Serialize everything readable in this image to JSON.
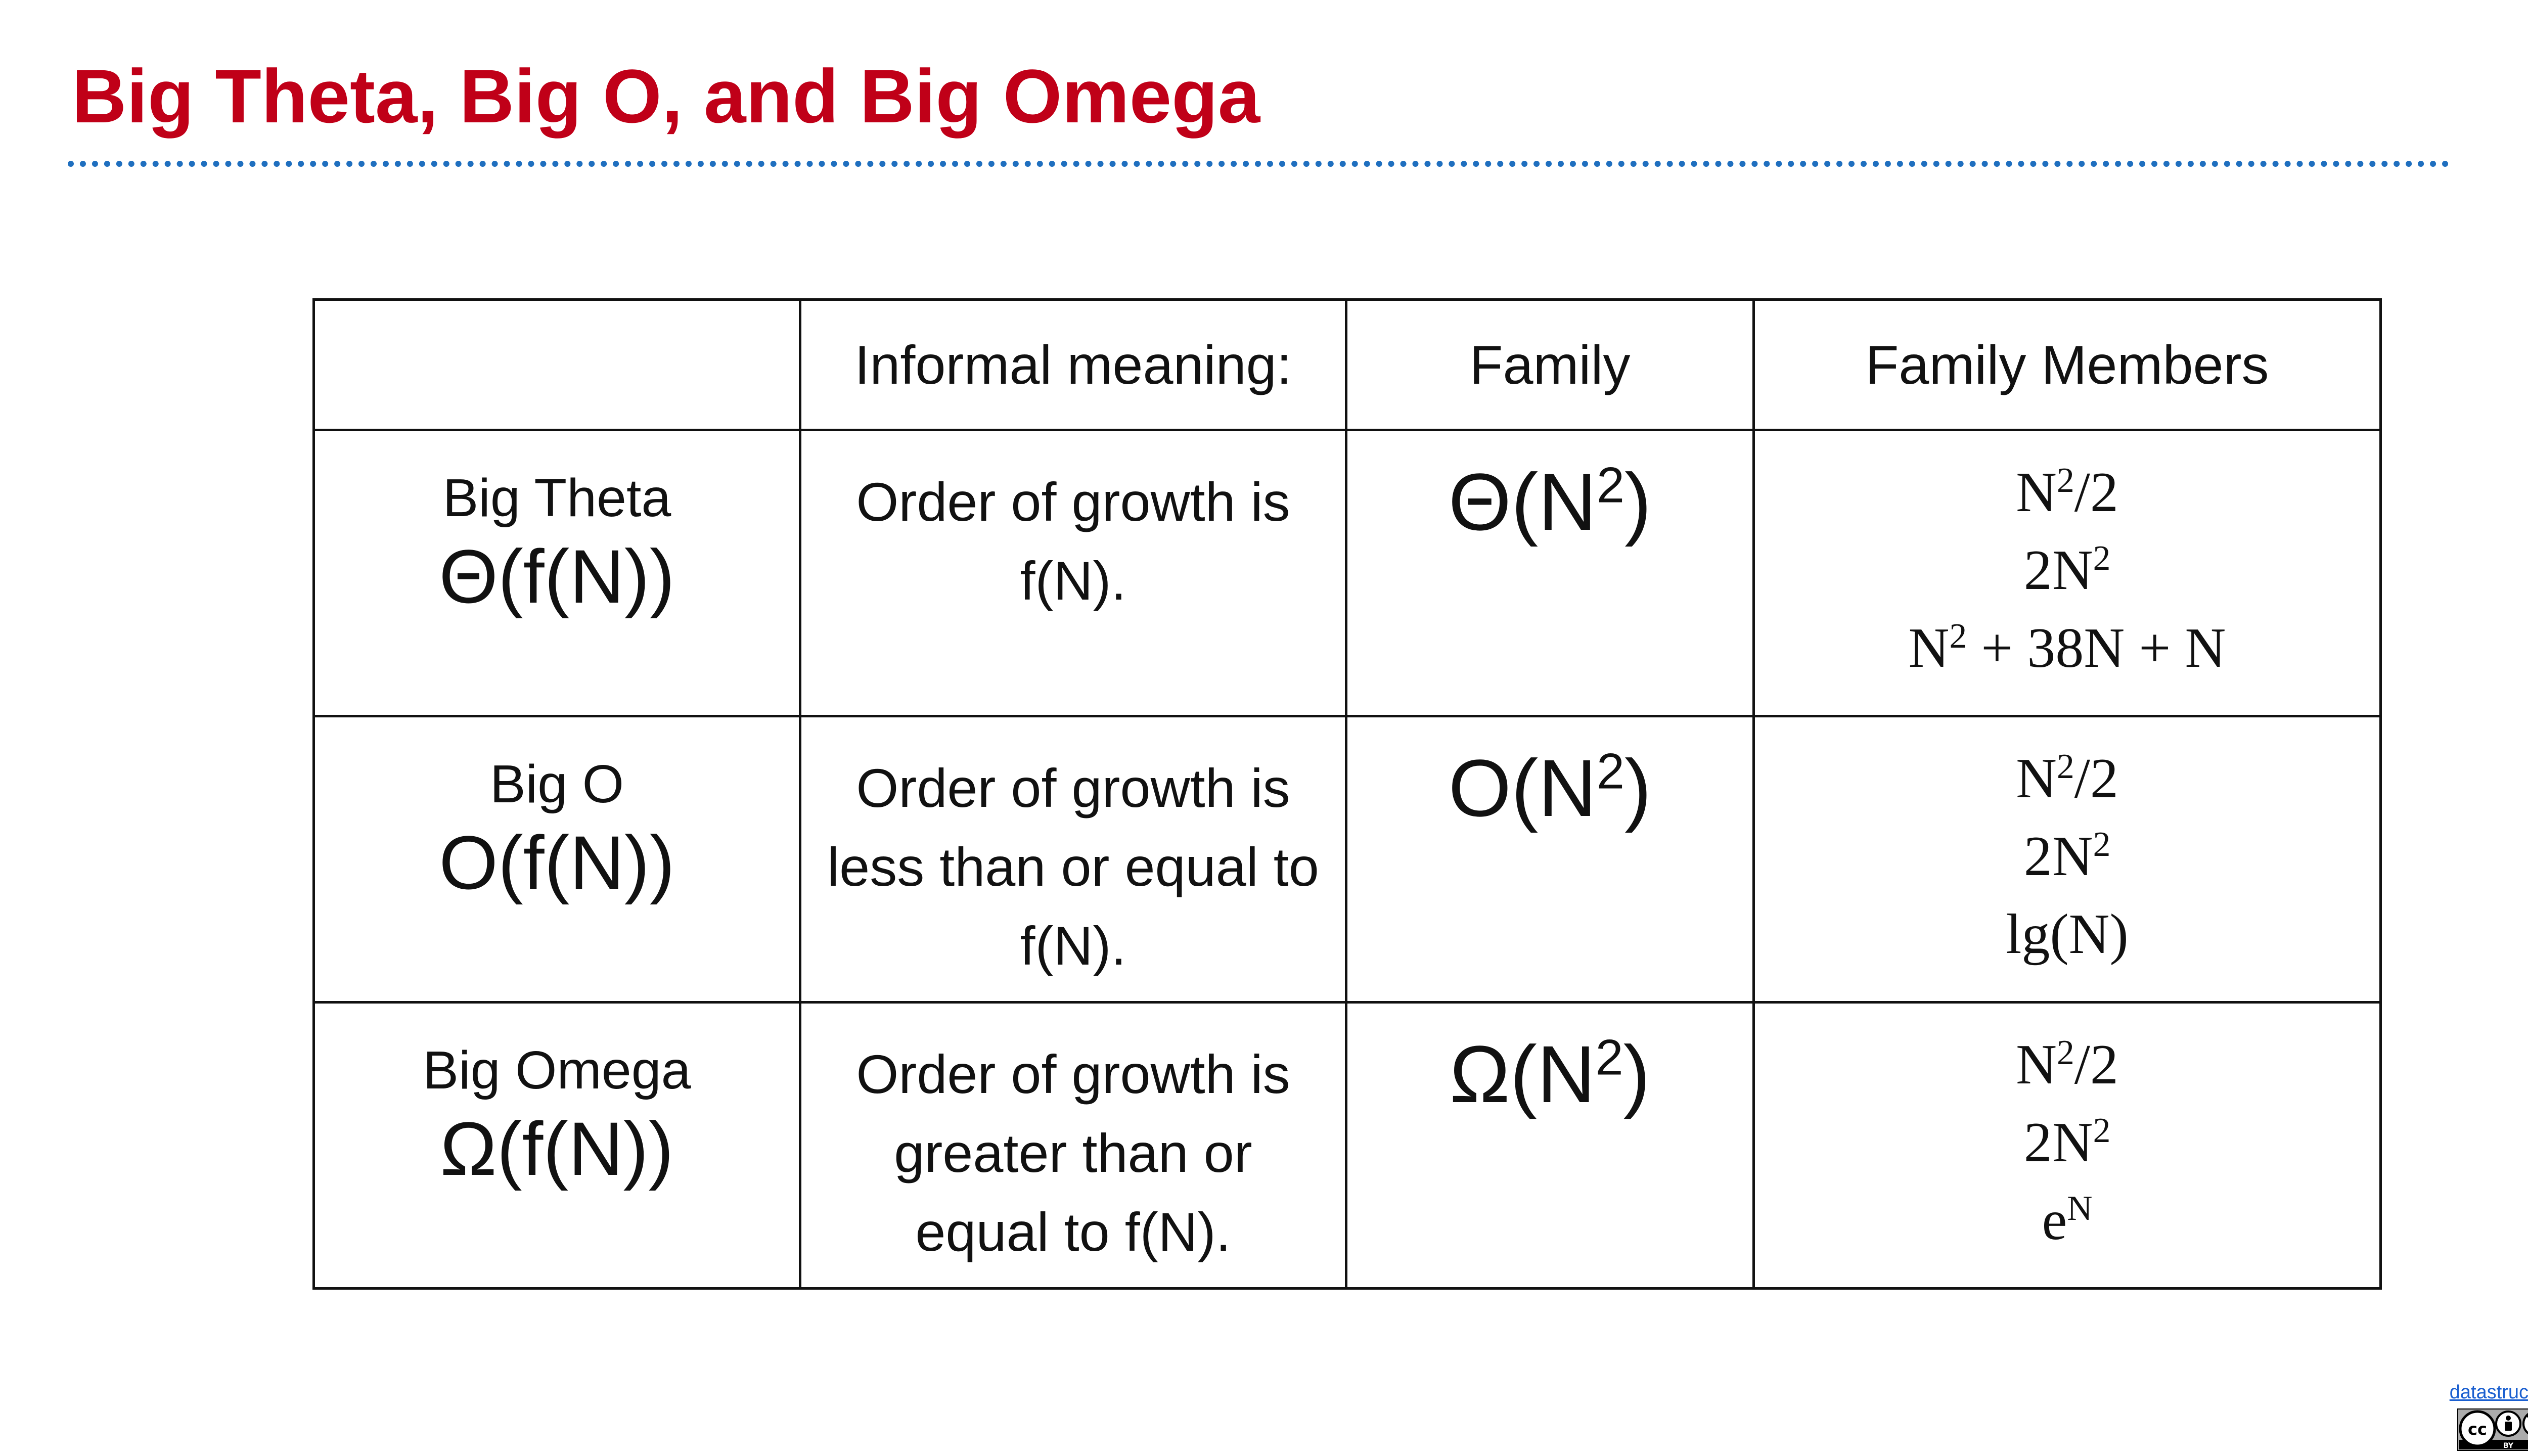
{
  "title": "Big Theta, Big O, and Big Omega",
  "table": {
    "headers": [
      "",
      "Informal meaning:",
      "Family",
      "Family Members"
    ],
    "rows": [
      {
        "name": "Big Theta",
        "notation": "Θ(f(N))",
        "meaning": "Order of growth is f(N).",
        "family_symbol": "Θ",
        "family_base": "(N",
        "family_exp": "2",
        "family_close": ")",
        "members": [
          {
            "pre": "N",
            "exp": "2",
            "post": "/2"
          },
          {
            "pre": "2N",
            "exp": "2",
            "post": ""
          },
          {
            "pre": "N",
            "exp": "2",
            "post": " + 38N + N"
          }
        ]
      },
      {
        "name": "Big O",
        "notation": "O(f(N))",
        "meaning": "Order of growth is less than or equal to f(N).",
        "family_symbol": "O",
        "family_base": "(N",
        "family_exp": "2",
        "family_close": ")",
        "members": [
          {
            "pre": "N",
            "exp": "2",
            "post": "/2"
          },
          {
            "pre": "2N",
            "exp": "2",
            "post": ""
          },
          {
            "pre": "lg(N)",
            "exp": "",
            "post": ""
          }
        ]
      },
      {
        "name": "Big Omega",
        "notation": "Ω(f(N))",
        "meaning": "Order of growth is greater than or equal to f(N).",
        "family_symbol": "Ω",
        "family_base": "(N",
        "family_exp": "2",
        "family_close": ")",
        "members": [
          {
            "pre": "N",
            "exp": "2",
            "post": "/2"
          },
          {
            "pre": "2N",
            "exp": "2",
            "post": ""
          },
          {
            "pre": "e",
            "exp": "N",
            "post": ""
          }
        ]
      }
    ]
  },
  "footer": {
    "link_text": "datastructur.es",
    "license_icon": "cc-by-nc-sa-icon",
    "license_labels": [
      "BY",
      "NC",
      "SA"
    ]
  },
  "colors": {
    "title": "#c00018",
    "rule": "#1f6fbf",
    "link": "#1a5fd0"
  }
}
